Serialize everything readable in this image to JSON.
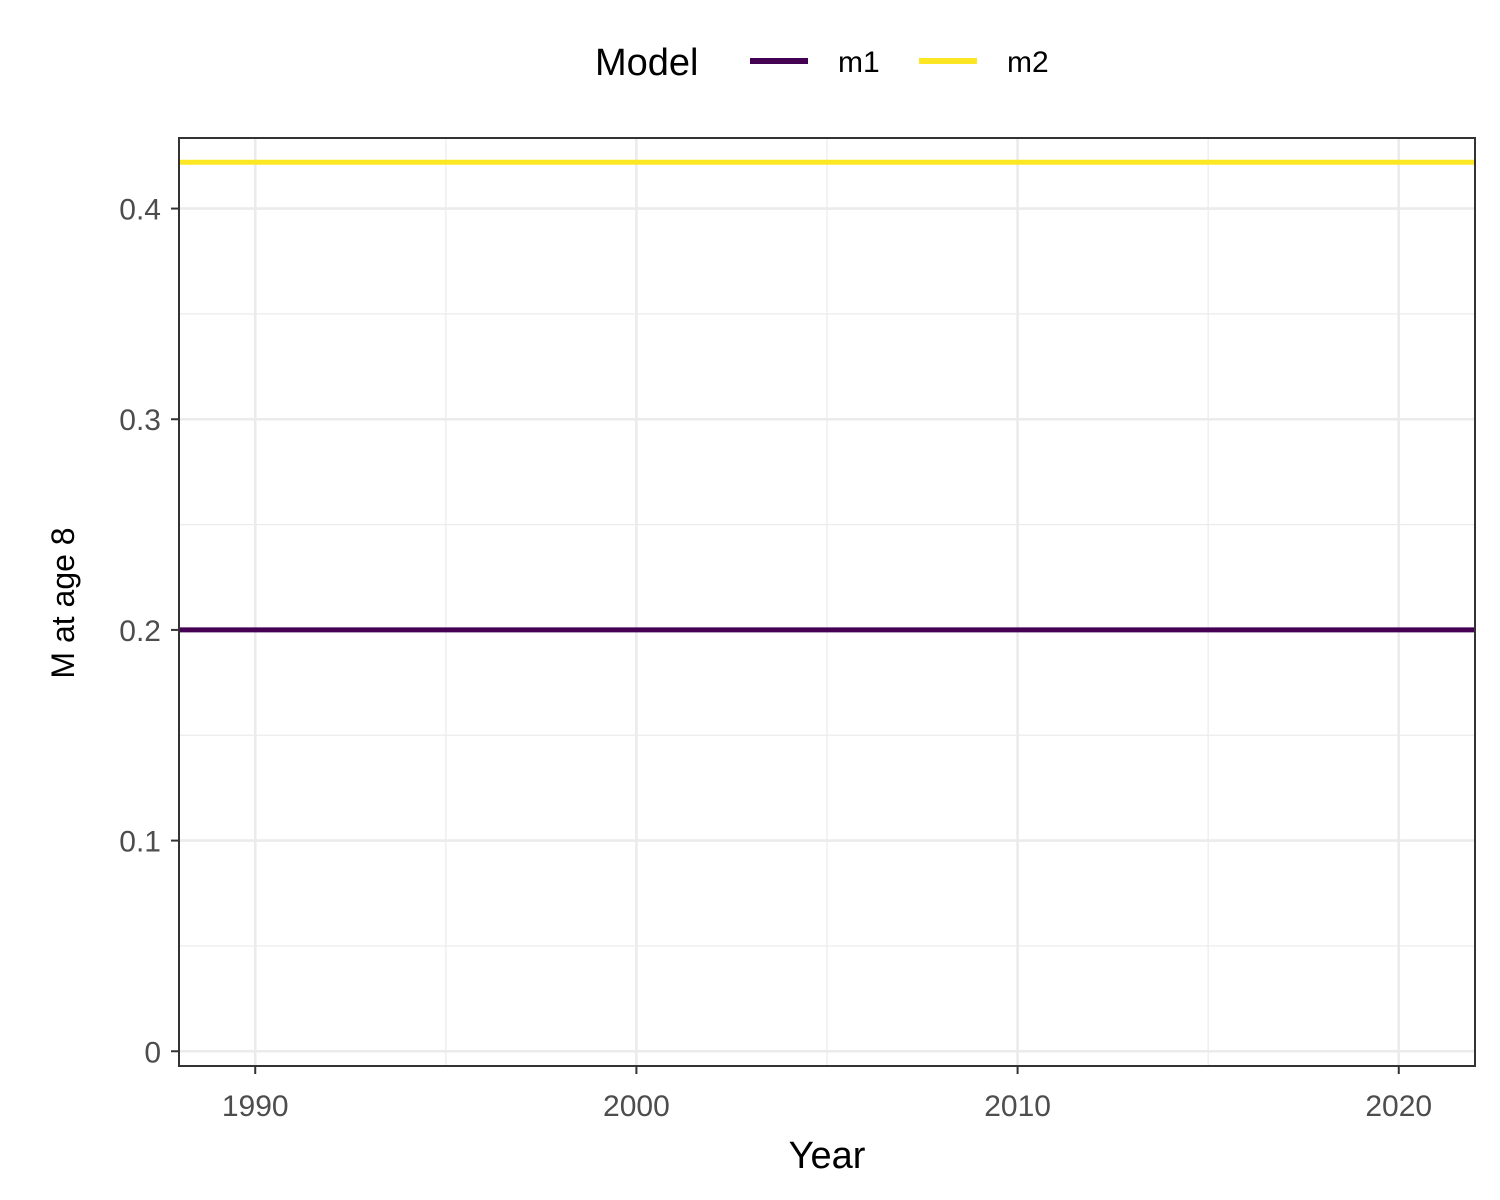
{
  "chart_data": {
    "type": "line",
    "xlabel": "Year",
    "ylabel": "M at age 8",
    "xlim": [
      1988,
      2022
    ],
    "ylim": [
      -0.007,
      0.4335
    ],
    "x_ticks": [
      1990,
      2000,
      2010,
      2020
    ],
    "y_ticks": [
      0,
      0.1,
      0.2,
      0.3,
      0.4
    ],
    "y_tick_labels": [
      "0",
      "0.1",
      "0.2",
      "0.3",
      "0.4"
    ],
    "grid": true,
    "legend": {
      "title": "Model",
      "position": "top"
    },
    "series": [
      {
        "name": "m1",
        "color": "#440154",
        "x": [
          1988,
          1989,
          1990,
          1991,
          1992,
          1993,
          1994,
          1995,
          1996,
          1997,
          1998,
          1999,
          2000,
          2001,
          2002,
          2003,
          2004,
          2005,
          2006,
          2007,
          2008,
          2009,
          2010,
          2011,
          2012,
          2013,
          2014,
          2015,
          2016,
          2017,
          2018,
          2019,
          2020,
          2021,
          2022
        ],
        "values": [
          0.2,
          0.2,
          0.2,
          0.2,
          0.2,
          0.2,
          0.2,
          0.2,
          0.2,
          0.2,
          0.2,
          0.2,
          0.2,
          0.2,
          0.2,
          0.2,
          0.2,
          0.2,
          0.2,
          0.2,
          0.2,
          0.2,
          0.2,
          0.2,
          0.2,
          0.2,
          0.2,
          0.2,
          0.2,
          0.2,
          0.2,
          0.2,
          0.2,
          0.2,
          0.2
        ]
      },
      {
        "name": "m2",
        "color": "#FDE725",
        "x": [
          1988,
          1989,
          1990,
          1991,
          1992,
          1993,
          1994,
          1995,
          1996,
          1997,
          1998,
          1999,
          2000,
          2001,
          2002,
          2003,
          2004,
          2005,
          2006,
          2007,
          2008,
          2009,
          2010,
          2011,
          2012,
          2013,
          2014,
          2015,
          2016,
          2017,
          2018,
          2019,
          2020,
          2021,
          2022
        ],
        "values": [
          0.422,
          0.422,
          0.422,
          0.422,
          0.422,
          0.422,
          0.422,
          0.422,
          0.422,
          0.422,
          0.422,
          0.422,
          0.422,
          0.422,
          0.422,
          0.422,
          0.422,
          0.422,
          0.422,
          0.422,
          0.422,
          0.422,
          0.422,
          0.422,
          0.422,
          0.422,
          0.422,
          0.422,
          0.422,
          0.422,
          0.422,
          0.422,
          0.422,
          0.422,
          0.422
        ]
      }
    ]
  }
}
